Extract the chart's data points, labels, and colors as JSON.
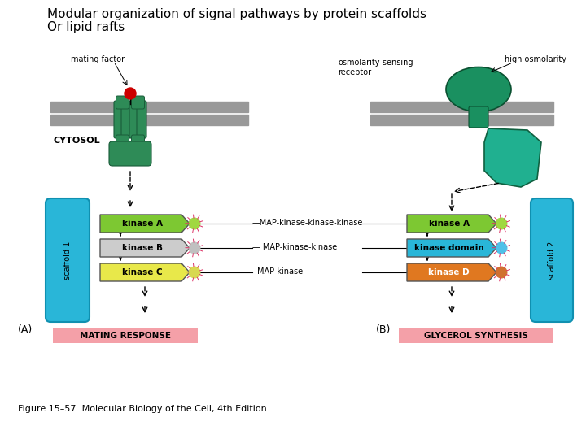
{
  "title_line1": "Modular organization of signal pathways by protein scaffolds",
  "title_line2": "Or lipid rafts",
  "title_fontsize": 11,
  "bg_color": "#ffffff",
  "caption": "Figure 15–57. Molecular Biology of the Cell, 4th Edition.",
  "left_panel": {
    "membrane_color": "#999999",
    "receptor_color": "#2e8b57",
    "mating_factor_color": "#cc0000",
    "mating_factor_label": "mating factor",
    "cytosol_label": "CYTOSOL",
    "scaffold_color": "#29b6d8",
    "scaffold_label": "scaffold 1",
    "kinaseA_color": "#7dc832",
    "kinaseA_label": "kinase A",
    "kinaseB_color": "#cccccc",
    "kinaseB_label": "kinase B",
    "kinaseC_color": "#e8e84a",
    "kinaseC_label": "kinase C",
    "mapkkk_label": "—MAP-kinase-kinase-kinase",
    "mapkk_label": "— MAP-kinase-kinase",
    "mapk_label": "MAP-kinase",
    "response_label": "MATING RESPONSE",
    "response_color": "#f4a0a8",
    "panel_label": "(A)"
  },
  "right_panel": {
    "membrane_color": "#999999",
    "receptor_extracell_color": "#1a9060",
    "receptor_cytoplasm_color": "#20b090",
    "osmosensor_label": "osmolarity-sensing\nreceptor",
    "high_osm_label": "high osmolarity",
    "scaffold_color": "#29b6d8",
    "scaffold_label": "scaffold 2",
    "kinaseA_color": "#7dc832",
    "kinaseA_label": "kinase A",
    "kinaseDomain_color": "#29b6d8",
    "kinaseDomain_label": "kinase domain",
    "kinaseD_color": "#e07820",
    "kinaseD_label": "kinase D",
    "response_label": "GLYCEROL SYNTHESIS",
    "response_color": "#f4a0a8",
    "panel_label": "(B)"
  }
}
